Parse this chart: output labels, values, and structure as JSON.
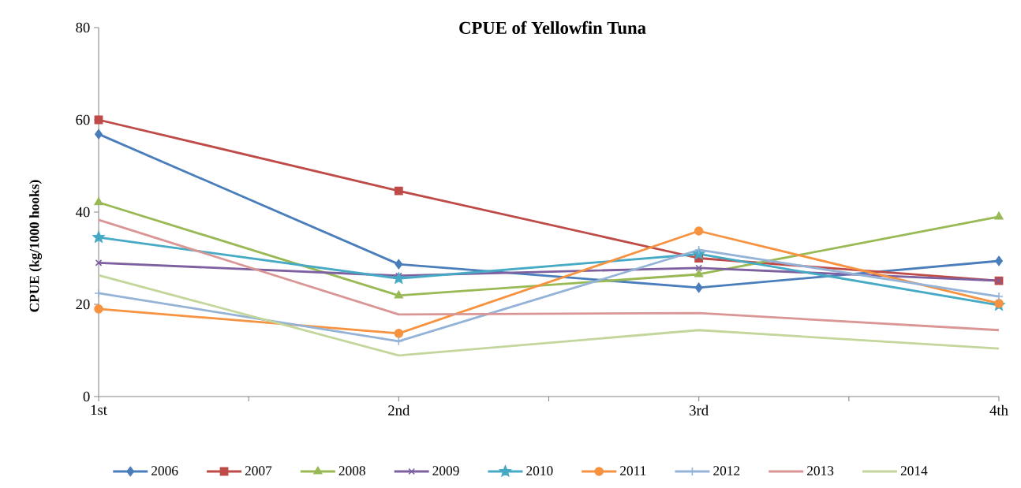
{
  "chart_data": {
    "type": "line",
    "title": "CPUE of Yellowfin Tuna",
    "ylabel": "CPUE (kg/1000 hooks)",
    "categories": [
      "1st",
      "2nd",
      "3rd",
      "4th"
    ],
    "ylim": [
      0,
      80
    ],
    "yticks": [
      0,
      20,
      40,
      60,
      80
    ],
    "legend": "bottom",
    "line_style": "solid",
    "series": [
      {
        "name": "2006",
        "color": "#4a7ebb",
        "marker": "diamond",
        "values": [
          56.9,
          28.7,
          23.6,
          29.4
        ]
      },
      {
        "name": "2007",
        "color": "#be4b48",
        "marker": "square",
        "values": [
          60.0,
          44.6,
          30.0,
          25.1
        ]
      },
      {
        "name": "2008",
        "color": "#98b954",
        "marker": "triangle",
        "values": [
          42.1,
          21.9,
          26.5,
          39.0
        ]
      },
      {
        "name": "2009",
        "color": "#7d60a0",
        "marker": "cross",
        "values": [
          29.0,
          26.2,
          27.9,
          25.1
        ]
      },
      {
        "name": "2010",
        "color": "#46aac5",
        "marker": "star",
        "values": [
          34.5,
          25.6,
          30.9,
          19.8
        ]
      },
      {
        "name": "2011",
        "color": "#f69240",
        "marker": "circle",
        "values": [
          19.0,
          13.7,
          35.9,
          20.2
        ]
      },
      {
        "name": "2012",
        "color": "#95b3d7",
        "marker": "plus",
        "values": [
          22.4,
          12.0,
          31.8,
          21.7
        ]
      },
      {
        "name": "2013",
        "color": "#d99694",
        "marker": "none",
        "values": [
          38.3,
          17.8,
          18.1,
          14.4
        ]
      },
      {
        "name": "2014",
        "color": "#c3d69b",
        "marker": "none",
        "values": [
          26.3,
          8.9,
          14.4,
          10.4
        ]
      }
    ]
  }
}
